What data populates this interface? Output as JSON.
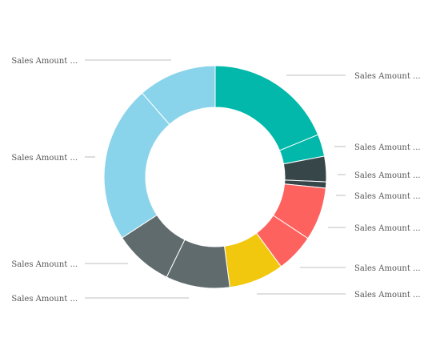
{
  "chart_data": {
    "type": "pie",
    "style": "donut",
    "title": "",
    "slices": [
      {
        "label": "Sales Amount ...",
        "value": 18.8,
        "color": "#01B8AA"
      },
      {
        "label": "Sales Amount ...",
        "value": 3.2,
        "color": "#01B8AA"
      },
      {
        "label": "Sales Amount ...",
        "value": 3.7,
        "color": "#374649"
      },
      {
        "label": "Sales Amount ...",
        "value": 0.9,
        "color": "#374649"
      },
      {
        "label": "Sales Amount ...",
        "value": 7.7,
        "color": "#FD625E"
      },
      {
        "label": "Sales Amount ...",
        "value": 5.6,
        "color": "#FD625E"
      },
      {
        "label": "Sales Amount ...",
        "value": 8.0,
        "color": "#F2C80F"
      },
      {
        "label": "Sales Amount ...",
        "value": 9.3,
        "color": "#5F6B6D"
      },
      {
        "label": "Sales Amount ...",
        "value": 8.6,
        "color": "#5F6B6D"
      },
      {
        "label": "Sales Amount ...",
        "value": 22.8,
        "color": "#8AD4EB"
      },
      {
        "label": "Sales Amount ...",
        "value": 11.4,
        "color": "#8AD4EB"
      }
    ],
    "legend": "none",
    "separator_color": "#ffffff",
    "leader_line_color": "#aaaaaa"
  }
}
